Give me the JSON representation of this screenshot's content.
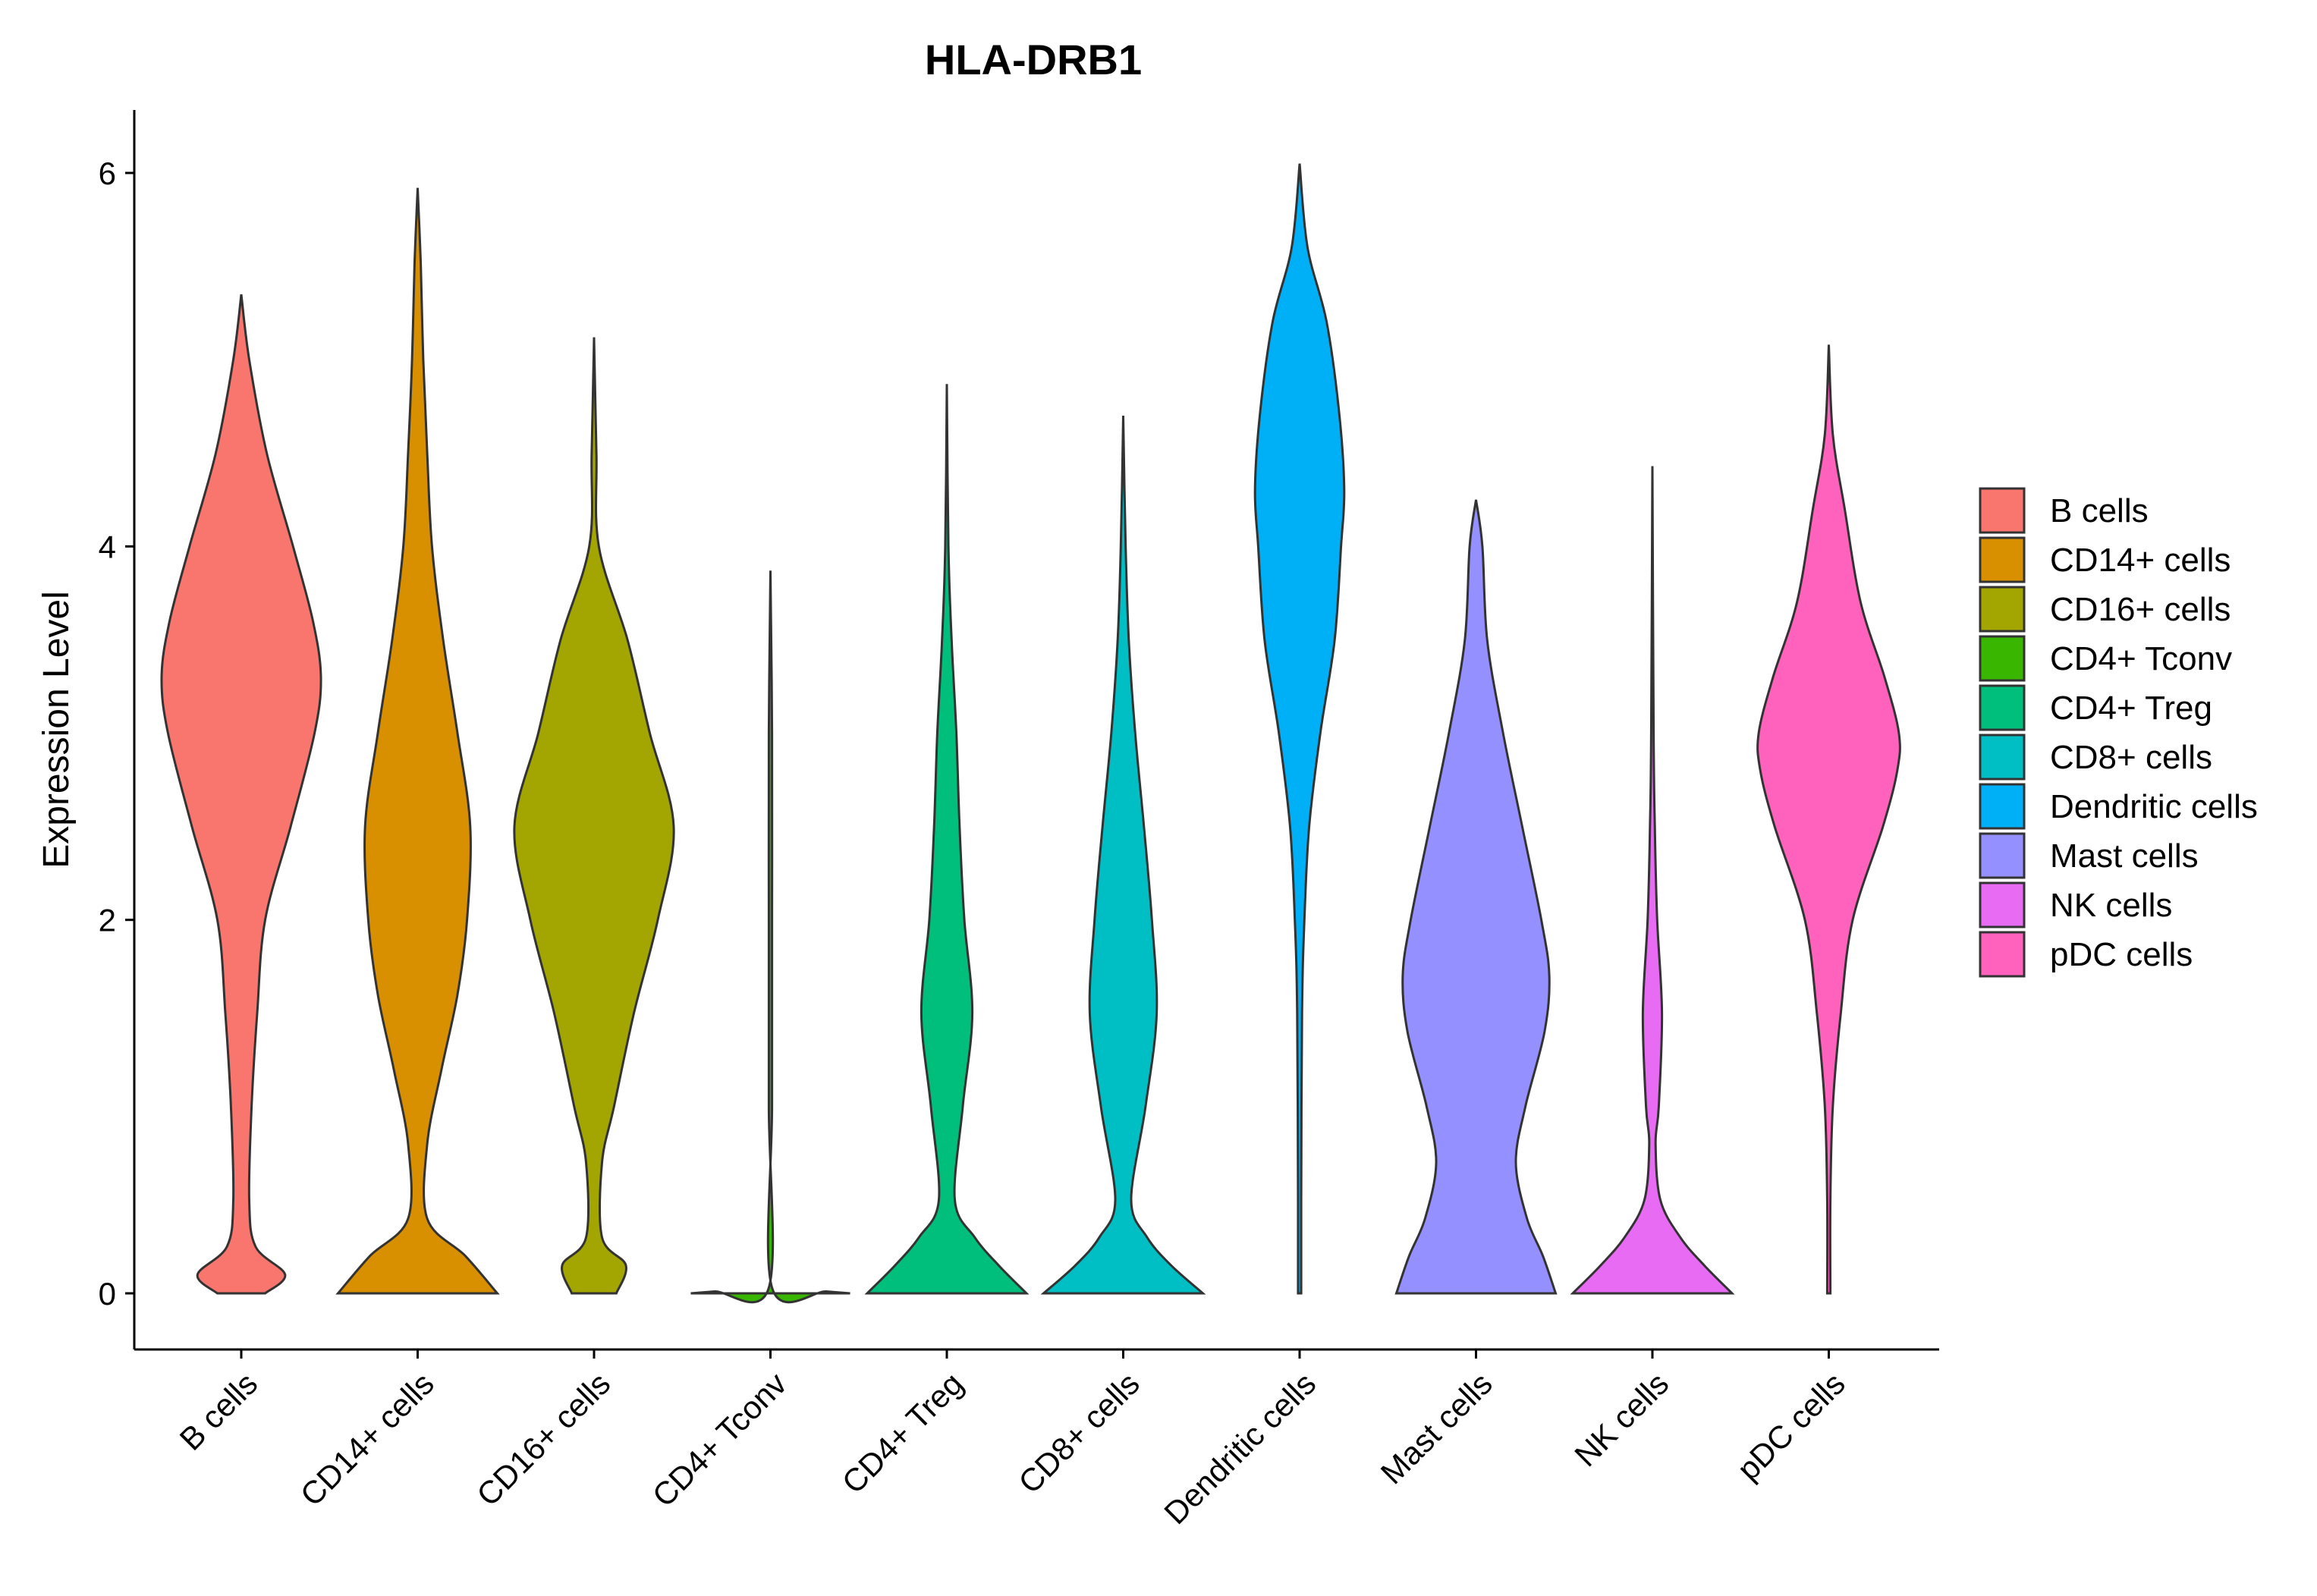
{
  "chart_data": {
    "type": "violin",
    "title": "HLA-DRB1",
    "xlabel": "",
    "ylabel": "Expression Level",
    "ylim": [
      -0.3,
      6.35
    ],
    "yticks": [
      0,
      2,
      4,
      6
    ],
    "grid": false,
    "legend_position": "right",
    "categories": [
      "B cells",
      "CD14+ cells",
      "CD16+ cells",
      "CD4+ Tconv",
      "CD4+ Treg",
      "CD8+ cells",
      "Dendritic cells",
      "Mast cells",
      "NK cells",
      "pDC cells"
    ],
    "colors": [
      "#F8766D",
      "#D89000",
      "#A3A500",
      "#39B600",
      "#00BF7D",
      "#00BFC4",
      "#00B0F6",
      "#9590FF",
      "#E76BF3",
      "#FF62BC"
    ],
    "series": [
      {
        "name": "B cells",
        "max": 5.35,
        "profile": [
          [
            0,
            0.3
          ],
          [
            0.1,
            0.55
          ],
          [
            0.25,
            0.18
          ],
          [
            0.5,
            0.1
          ],
          [
            1,
            0.13
          ],
          [
            1.5,
            0.2
          ],
          [
            2,
            0.3
          ],
          [
            2.5,
            0.62
          ],
          [
            3,
            0.92
          ],
          [
            3.3,
            1.0
          ],
          [
            3.6,
            0.9
          ],
          [
            4,
            0.65
          ],
          [
            4.5,
            0.32
          ],
          [
            5,
            0.1
          ],
          [
            5.35,
            0
          ]
        ]
      },
      {
        "name": "CD14+ cells",
        "max": 5.92,
        "profile": [
          [
            0,
            1.0
          ],
          [
            0.2,
            0.6
          ],
          [
            0.4,
            0.12
          ],
          [
            0.8,
            0.12
          ],
          [
            1.2,
            0.3
          ],
          [
            1.6,
            0.5
          ],
          [
            2,
            0.62
          ],
          [
            2.5,
            0.66
          ],
          [
            3,
            0.5
          ],
          [
            3.5,
            0.32
          ],
          [
            4,
            0.18
          ],
          [
            4.5,
            0.12
          ],
          [
            5,
            0.07
          ],
          [
            5.5,
            0.04
          ],
          [
            5.92,
            0
          ]
        ]
      },
      {
        "name": "CD16+ cells",
        "max": 5.12,
        "profile": [
          [
            0,
            0.28
          ],
          [
            0.15,
            0.4
          ],
          [
            0.3,
            0.1
          ],
          [
            0.7,
            0.1
          ],
          [
            1.0,
            0.25
          ],
          [
            1.5,
            0.5
          ],
          [
            2,
            0.8
          ],
          [
            2.5,
            1.0
          ],
          [
            3,
            0.7
          ],
          [
            3.5,
            0.42
          ],
          [
            4,
            0.06
          ],
          [
            4.5,
            0.03
          ],
          [
            5.12,
            0
          ]
        ]
      },
      {
        "name": "CD4+ Tconv",
        "max": 3.87,
        "profile": [
          [
            0,
            1.0
          ],
          [
            0.01,
            0.7
          ],
          [
            0.03,
            0.02
          ],
          [
            1,
            0.02
          ],
          [
            2,
            0.02
          ],
          [
            3,
            0.02
          ],
          [
            3.87,
            0
          ]
        ]
      },
      {
        "name": "CD4+ Treg",
        "max": 4.87,
        "profile": [
          [
            0,
            1.0
          ],
          [
            0.15,
            0.65
          ],
          [
            0.3,
            0.35
          ],
          [
            0.5,
            0.1
          ],
          [
            1,
            0.2
          ],
          [
            1.5,
            0.32
          ],
          [
            2,
            0.22
          ],
          [
            2.5,
            0.16
          ],
          [
            3,
            0.12
          ],
          [
            3.5,
            0.06
          ],
          [
            4,
            0.02
          ],
          [
            4.87,
            0
          ]
        ]
      },
      {
        "name": "CD8+ cells",
        "max": 4.7,
        "profile": [
          [
            0,
            1.0
          ],
          [
            0.15,
            0.6
          ],
          [
            0.3,
            0.3
          ],
          [
            0.5,
            0.1
          ],
          [
            1,
            0.28
          ],
          [
            1.5,
            0.42
          ],
          [
            2,
            0.36
          ],
          [
            2.5,
            0.26
          ],
          [
            3,
            0.15
          ],
          [
            3.5,
            0.07
          ],
          [
            4,
            0.03
          ],
          [
            4.7,
            0
          ]
        ]
      },
      {
        "name": "Dendritic cells",
        "max": 6.05,
        "profile": [
          [
            0,
            0.02
          ],
          [
            0.5,
            0.02
          ],
          [
            1.5,
            0.03
          ],
          [
            2,
            0.06
          ],
          [
            2.5,
            0.12
          ],
          [
            3,
            0.26
          ],
          [
            3.5,
            0.44
          ],
          [
            4,
            0.52
          ],
          [
            4.3,
            0.56
          ],
          [
            4.7,
            0.5
          ],
          [
            5.2,
            0.34
          ],
          [
            5.6,
            0.1
          ],
          [
            6.05,
            0
          ]
        ]
      },
      {
        "name": "Mast cells",
        "max": 4.25,
        "profile": [
          [
            0,
            1.0
          ],
          [
            0.2,
            0.84
          ],
          [
            0.4,
            0.64
          ],
          [
            0.7,
            0.5
          ],
          [
            1,
            0.62
          ],
          [
            1.4,
            0.86
          ],
          [
            1.7,
            0.92
          ],
          [
            2,
            0.82
          ],
          [
            2.5,
            0.58
          ],
          [
            3,
            0.34
          ],
          [
            3.5,
            0.14
          ],
          [
            4,
            0.08
          ],
          [
            4.25,
            0
          ]
        ]
      },
      {
        "name": "NK cells",
        "max": 4.43,
        "profile": [
          [
            0,
            1.0
          ],
          [
            0.15,
            0.65
          ],
          [
            0.3,
            0.35
          ],
          [
            0.5,
            0.1
          ],
          [
            0.8,
            0.04
          ],
          [
            1,
            0.08
          ],
          [
            1.5,
            0.12
          ],
          [
            2,
            0.06
          ],
          [
            2.5,
            0.03
          ],
          [
            3,
            0.015
          ],
          [
            4.43,
            0
          ]
        ]
      },
      {
        "name": "pDC cells",
        "max": 5.08,
        "profile": [
          [
            0,
            0.02
          ],
          [
            0.5,
            0.02
          ],
          [
            1,
            0.05
          ],
          [
            1.5,
            0.15
          ],
          [
            2,
            0.3
          ],
          [
            2.5,
            0.68
          ],
          [
            2.8,
            0.86
          ],
          [
            3,
            0.88
          ],
          [
            3.3,
            0.7
          ],
          [
            3.7,
            0.4
          ],
          [
            4.2,
            0.2
          ],
          [
            4.6,
            0.05
          ],
          [
            5.08,
            0
          ]
        ]
      }
    ],
    "legend": [
      "B cells",
      "CD14+ cells",
      "CD16+ cells",
      "CD4+ Tconv",
      "CD4+ Treg",
      "CD8+ cells",
      "Dendritic cells",
      "Mast cells",
      "NK cells",
      "pDC cells"
    ]
  }
}
